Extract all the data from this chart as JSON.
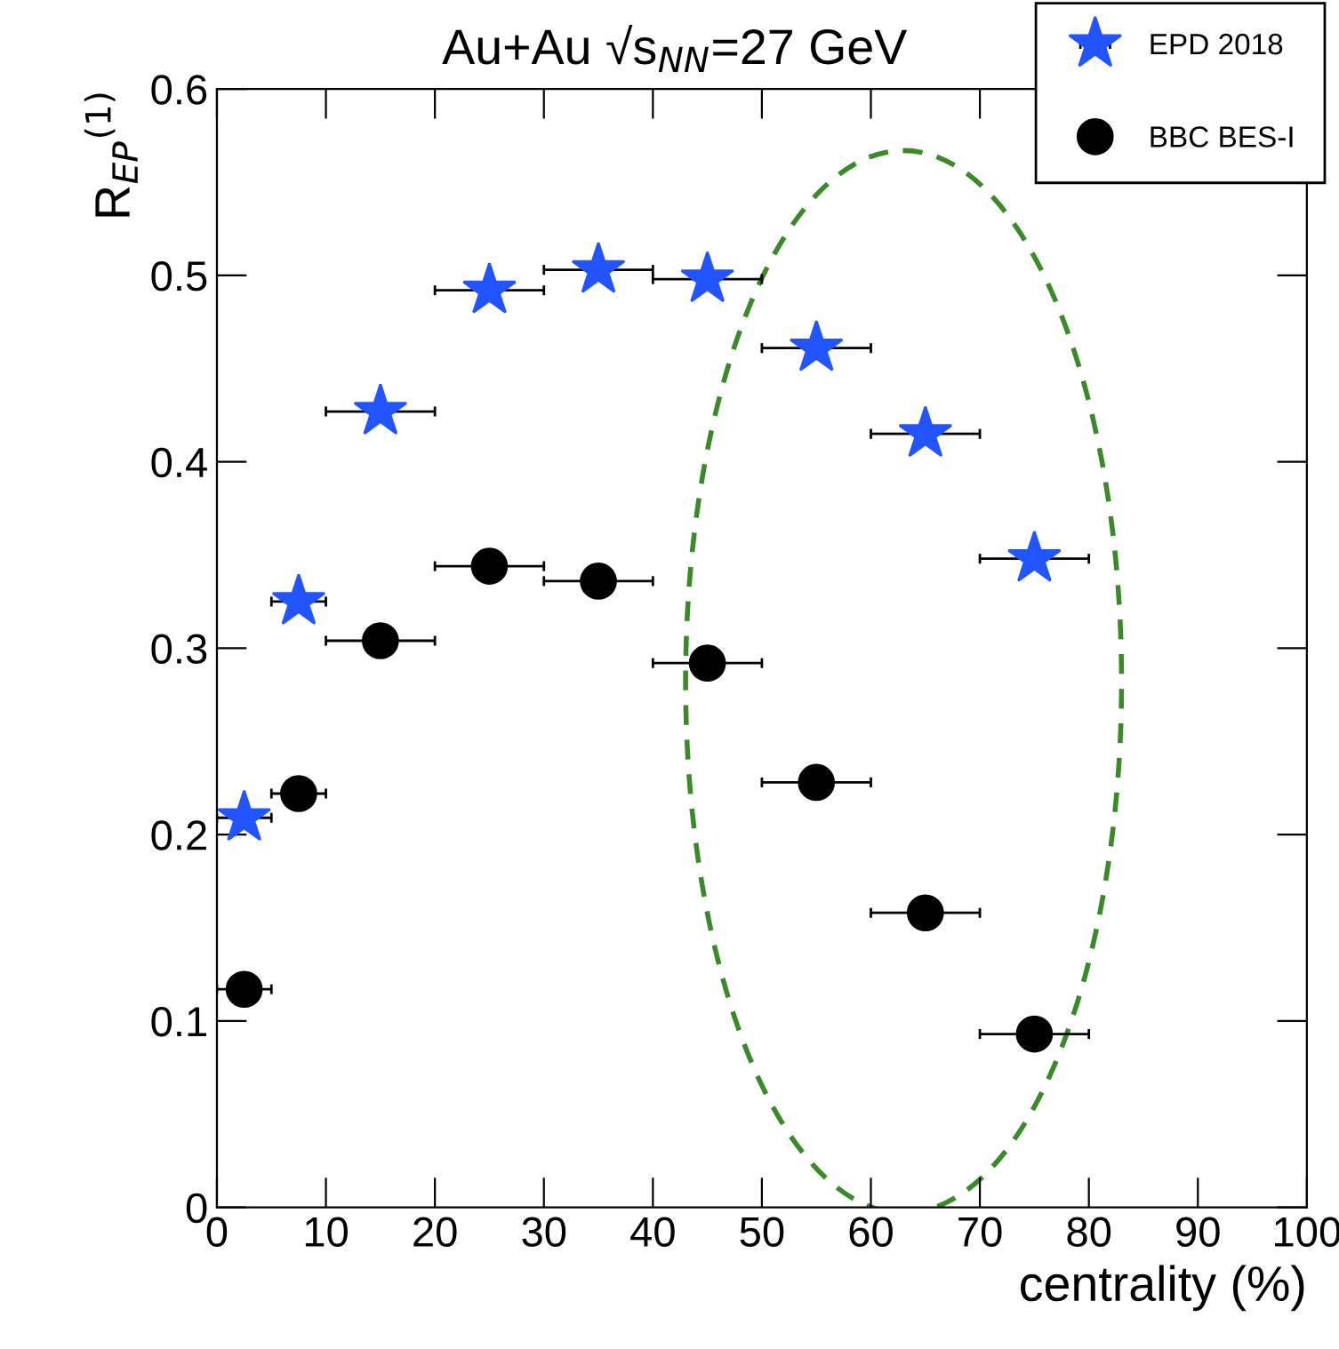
{
  "chart_data": {
    "type": "scatter",
    "title": "Au+Au √s$_{NN}$=27 GeV",
    "xlabel": "centrality (%)",
    "ylabel": "R$_{EP}$$^{(1)}$",
    "x": [
      2.5,
      7.5,
      15,
      25,
      35,
      45,
      55,
      65,
      75
    ],
    "series": [
      {
        "name": "EPD 2018",
        "color": "#2255ff",
        "marker": "star",
        "values": [
          0.209,
          0.325,
          0.427,
          0.492,
          0.503,
          0.498,
          0.461,
          0.415,
          0.348
        ],
        "xerrors": [
          2.5,
          2.5,
          5,
          5,
          5,
          5,
          5,
          5,
          5
        ]
      },
      {
        "name": "BBC BES-I",
        "color": "#000000",
        "marker": "circle",
        "values": [
          0.117,
          0.222,
          0.304,
          0.344,
          0.336,
          0.292,
          0.228,
          0.158,
          0.093
        ],
        "xerrors": [
          2.5,
          2.5,
          5,
          5,
          5,
          5,
          5,
          5,
          5
        ]
      }
    ],
    "xlim": [
      0,
      100
    ],
    "xticks": [
      0,
      10,
      20,
      30,
      40,
      50,
      60,
      70,
      80,
      90,
      100
    ],
    "ylim": [
      0,
      0.6
    ],
    "yticks": [
      0,
      0.1,
      0.2,
      0.3,
      0.4,
      0.5,
      0.6
    ],
    "legend": "top right",
    "grid": false
  }
}
